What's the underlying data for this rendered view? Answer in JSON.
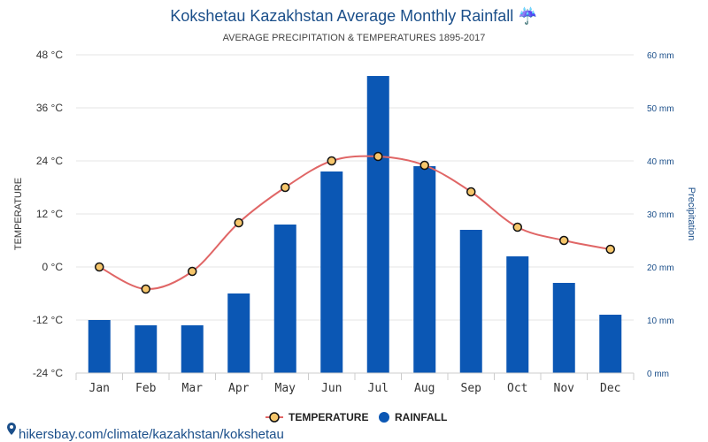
{
  "chart_data": {
    "type": "bar",
    "title": "Kokshetau Kazakhstan Average Monthly Rainfall ☔",
    "subtitle": "AVERAGE PRECIPITATION & TEMPERATURES 1895-2017",
    "categories": [
      "Jan",
      "Feb",
      "Mar",
      "Apr",
      "May",
      "Jun",
      "Jul",
      "Aug",
      "Sep",
      "Oct",
      "Nov",
      "Dec"
    ],
    "y_left": {
      "label": "TEMPERATURE",
      "range": [
        -24,
        48
      ],
      "ticks": [
        "48 °C",
        "36 °C",
        "24 °C",
        "12 °C",
        "0 °C",
        "-12 °C",
        "-24 °C"
      ],
      "tick_values": [
        48,
        36,
        24,
        12,
        0,
        -12,
        -24
      ]
    },
    "y_right": {
      "label": "Precipitation",
      "range": [
        0,
        60
      ],
      "ticks": [
        "60 mm",
        "50 mm",
        "40 mm",
        "30 mm",
        "20 mm",
        "10 mm",
        "0 mm"
      ],
      "tick_values": [
        60,
        50,
        40,
        30,
        20,
        10,
        0
      ]
    },
    "series": [
      {
        "name": "TEMPERATURE",
        "type": "line",
        "axis": "left",
        "color": "#e06666",
        "marker_fill": "#f6c66b",
        "values": [
          0,
          -5,
          -1,
          10,
          18,
          24,
          25,
          23,
          17,
          9,
          6,
          4
        ]
      },
      {
        "name": "RAINFALL",
        "type": "bar",
        "axis": "right",
        "color": "#0b57b4",
        "values": [
          10,
          9,
          9,
          15,
          28,
          38,
          56,
          39,
          27,
          22,
          17,
          11
        ]
      }
    ],
    "grid": true,
    "legend_position": "bottom-center"
  },
  "source": "hikersbay.com/climate/kazakhstan/kokshetau"
}
